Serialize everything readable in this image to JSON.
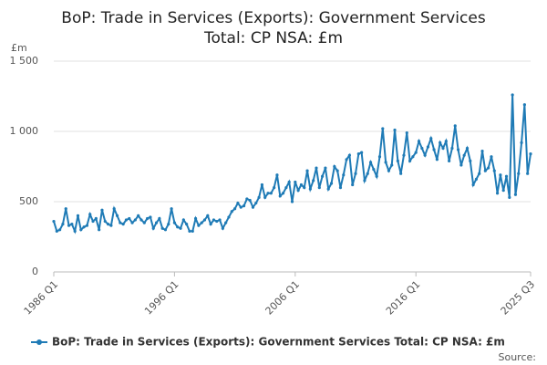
{
  "chart_data": {
    "type": "line",
    "title": [
      "BoP: Trade in Services (Exports): Government Services",
      "Total: CP NSA: £m"
    ],
    "y_unit": "£m",
    "source": "Source:",
    "categories": [
      "1986 Q1",
      null,
      null,
      null,
      null,
      null,
      null,
      null,
      null,
      null,
      null,
      null,
      null,
      null,
      null,
      null,
      null,
      null,
      null,
      null,
      null,
      null,
      null,
      null,
      null,
      null,
      null,
      null,
      null,
      null,
      null,
      null,
      null,
      null,
      null,
      null,
      null,
      null,
      null,
      null,
      "1996 Q1",
      null,
      null,
      null,
      null,
      null,
      null,
      null,
      null,
      null,
      null,
      null,
      null,
      null,
      null,
      null,
      null,
      null,
      null,
      null,
      null,
      null,
      null,
      null,
      null,
      null,
      null,
      null,
      null,
      null,
      null,
      null,
      null,
      null,
      null,
      null,
      null,
      null,
      null,
      null,
      "2006 Q1",
      null,
      null,
      null,
      null,
      null,
      null,
      null,
      null,
      null,
      null,
      null,
      null,
      null,
      null,
      null,
      null,
      null,
      null,
      null,
      null,
      null,
      null,
      null,
      null,
      null,
      null,
      null,
      null,
      null,
      null,
      null,
      null,
      null,
      null,
      null,
      null,
      null,
      null,
      null,
      "2016 Q1",
      null,
      null,
      null,
      null,
      null,
      null,
      null,
      null,
      null,
      null,
      null,
      null,
      null,
      null,
      null,
      null,
      null,
      null,
      null,
      null,
      null,
      null,
      null,
      null,
      null,
      null,
      null,
      null,
      null,
      null,
      null,
      null,
      null,
      null,
      null,
      null,
      null,
      "2025 Q3"
    ],
    "series": [
      {
        "name": "BoP: Trade in Services (Exports): Government Services Total: CP NSA: £m",
        "color": "#1f7bb6",
        "values": [
          360,
          290,
          300,
          340,
          450,
          330,
          340,
          290,
          400,
          300,
          320,
          330,
          410,
          360,
          380,
          300,
          440,
          360,
          340,
          330,
          450,
          400,
          350,
          340,
          370,
          380,
          350,
          370,
          400,
          370,
          350,
          380,
          390,
          310,
          350,
          380,
          310,
          300,
          340,
          450,
          350,
          320,
          310,
          370,
          340,
          290,
          290,
          380,
          330,
          350,
          370,
          400,
          340,
          370,
          360,
          370,
          310,
          350,
          390,
          430,
          450,
          490,
          460,
          470,
          520,
          510,
          460,
          490,
          530,
          620,
          530,
          560,
          560,
          600,
          690,
          540,
          560,
          600,
          640,
          500,
          640,
          580,
          620,
          600,
          720,
          590,
          650,
          740,
          600,
          680,
          740,
          590,
          630,
          750,
          720,
          600,
          690,
          800,
          830,
          620,
          700,
          840,
          850,
          650,
          700,
          780,
          730,
          680,
          820,
          1020,
          780,
          720,
          760,
          1010,
          790,
          700,
          830,
          990,
          790,
          820,
          850,
          930,
          880,
          830,
          890,
          950,
          870,
          800,
          920,
          880,
          930,
          790,
          880,
          1040,
          870,
          760,
          830,
          880,
          790,
          620,
          660,
          700,
          860,
          720,
          740,
          820,
          720,
          560,
          690,
          580,
          680,
          530,
          1260,
          550,
          700,
          920,
          1190,
          700,
          840
        ]
      }
    ],
    "ylim": [
      0,
      1500
    ],
    "yticks": [
      0,
      500,
      {
        "value": 1000,
        "label": "1 000"
      },
      {
        "value": 1500,
        "label": "1 500"
      }
    ],
    "grid": true
  }
}
